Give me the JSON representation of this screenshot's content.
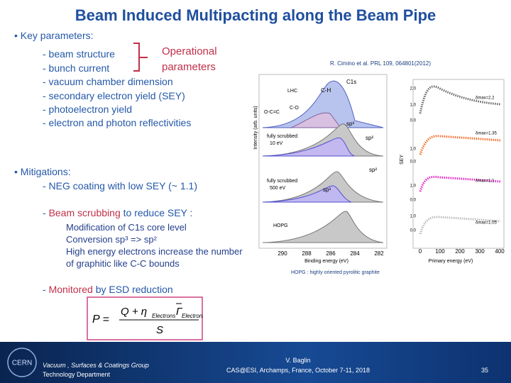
{
  "title": "Beam Induced Multipacting along the Beam Pipe",
  "key_parameters": {
    "heading": "Key parameters:",
    "items": [
      "- beam structure",
      "- bunch current",
      "- vacuum chamber dimension",
      "- secondary electron yield (SEY)",
      "- photoelectron yield",
      "- electron and photon reflectivities"
    ],
    "bracket_label": [
      "Operational",
      "parameters"
    ]
  },
  "reference": "R. Cimino et al. PRL 109, 064801(2012)",
  "mitigations": {
    "heading": "Mitigations:",
    "neg": "- NEG coating with low SEY (~ 1.1)",
    "scrubbing": {
      "prefix": "- ",
      "highlight": "Beam scrubbing",
      "rest": " to reduce SEY :"
    },
    "details": [
      "Modification of C1s core level",
      "Conversion sp³ => sp²",
      "High energy electrons increase the number",
      "of graphitic like C-C bounds"
    ],
    "monitoring": {
      "prefix": "- ",
      "highlight": "Monitored",
      "rest": " by ESD reduction"
    }
  },
  "formula": {
    "lhs": "P =",
    "numerator": "Q + η",
    "subscript_1": "Electrons",
    "gamma": "Γ",
    "subscript_2": "Electrons",
    "denominator": "S"
  },
  "figure": {
    "spectra": {
      "y_label": "Intensity (arb. units)",
      "x_label": "Binding energy (eV)",
      "x_ticks": [
        "290",
        "288",
        "286",
        "284",
        "282"
      ],
      "labels": [
        "LHC",
        "C-H",
        "C1s",
        "O-C=C",
        "C-O",
        "fully scrubbed",
        "10 eV",
        "sp³",
        "sp²",
        "fully scrubbed",
        "500 eV",
        "sp³",
        "sp²",
        "HOPG"
      ]
    },
    "sey": {
      "y_label": "SEY",
      "x_label": "Primary energy (eV)",
      "x_ticks": [
        "0",
        "100",
        "200",
        "300",
        "400"
      ],
      "row_ticks": [
        [
          "2.0",
          "1.0",
          "0.0"
        ],
        [
          "1.0",
          "0.0"
        ],
        [
          "1.0",
          "0.0"
        ],
        [
          "1.0",
          "0.0"
        ]
      ],
      "delta_labels": [
        "δmax=2.2",
        "δmax=1.35",
        "δmax=1.1",
        "δmax=1.05"
      ]
    },
    "caption": "HOPG : highly oriented pyrolitic graphite"
  },
  "footer": {
    "logo": "CERN",
    "group": "Vacuum , Surfaces & Coatings Group",
    "department": "Technology Department",
    "author": "V. Baglin",
    "event": "CAS@ESI, Archamps, France, October 7-11, 2018",
    "page": "35"
  }
}
